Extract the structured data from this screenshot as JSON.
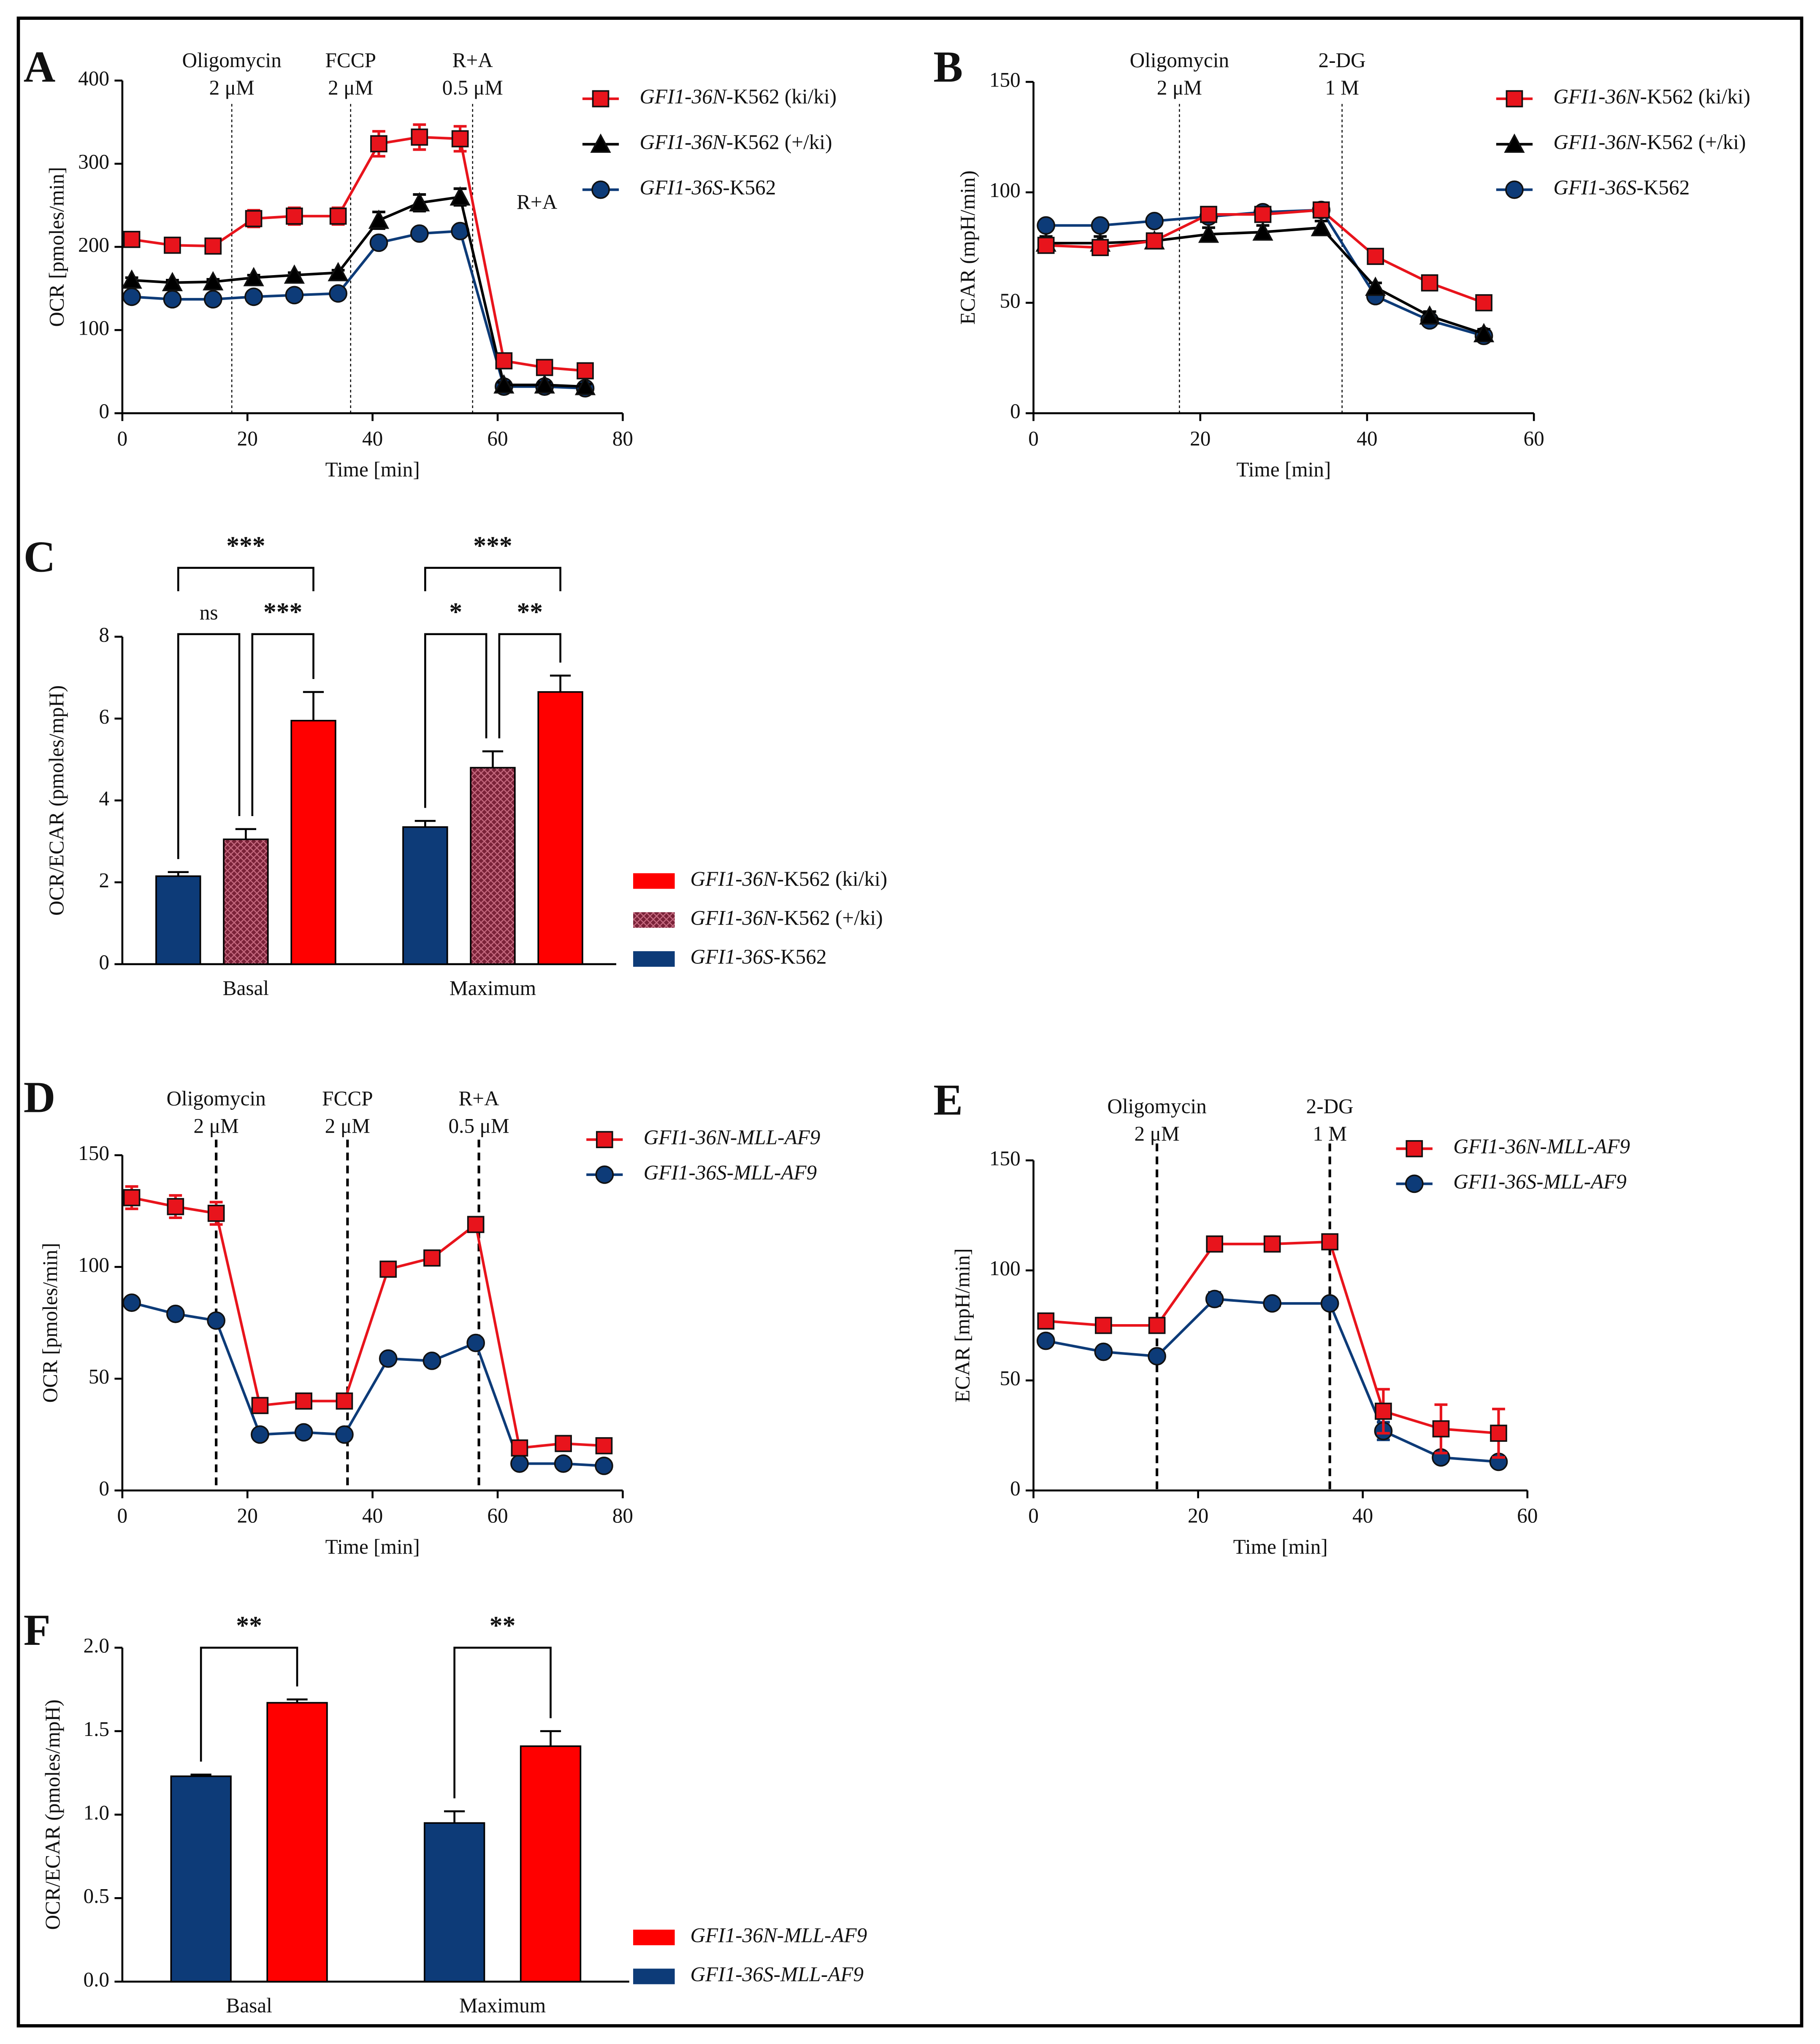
{
  "chart_data": [
    {
      "type": "line",
      "panel": "A",
      "ylabel": "OCR [pmoles/min]",
      "xlabel": "Time [min]",
      "xlim": [
        0,
        80
      ],
      "xticks": [
        0,
        20,
        40,
        60,
        80
      ],
      "ylim": [
        0,
        400
      ],
      "yticks": [
        0,
        100,
        200,
        300,
        400
      ],
      "vline_style": "dotted",
      "annotations": [
        {
          "x": 17.5,
          "label": [
            "Oligomycin",
            "2 μM"
          ]
        },
        {
          "x": 36.5,
          "label": [
            "FCCP",
            "2 μM"
          ]
        },
        {
          "x": 56,
          "label": [
            "R+A",
            "0.5 μM"
          ]
        }
      ],
      "note": "R+A",
      "x": [
        1.5,
        8,
        14.5,
        21,
        27.5,
        34.5,
        41,
        47.5,
        54,
        61,
        67.5,
        74
      ],
      "series": [
        {
          "name": "GFI1-36N-K562 (ki/ki)",
          "name_style": "italic-gene",
          "color": "#e8141c",
          "marker": "square",
          "values": [
            209,
            202,
            201,
            234,
            237,
            237,
            324,
            332,
            330,
            63,
            55,
            51
          ],
          "errors": [
            5,
            3,
            3,
            10,
            10,
            10,
            15,
            15,
            15,
            5,
            5,
            5
          ]
        },
        {
          "name": "GFI1-36N-K562 (+/ki)",
          "name_style": "italic-gene",
          "color": "#000000",
          "marker": "triangle",
          "values": [
            160,
            157,
            158,
            163,
            166,
            169,
            232,
            253,
            260,
            34,
            34,
            32
          ],
          "errors": [
            3,
            3,
            3,
            3,
            3,
            3,
            10,
            10,
            10,
            3,
            3,
            3
          ]
        },
        {
          "name": "GFI1-36S-K562",
          "name_style": "italic-gene",
          "color": "#0d3b78",
          "marker": "circle",
          "values": [
            140,
            137,
            137,
            140,
            142,
            144,
            205,
            216,
            219,
            32,
            32,
            30
          ],
          "errors": [
            2,
            2,
            2,
            2,
            2,
            2,
            3,
            3,
            3,
            2,
            2,
            2
          ]
        }
      ]
    },
    {
      "type": "line",
      "panel": "B",
      "ylabel": "ECAR (mpH/min)",
      "xlabel": "Time [min]",
      "xlim": [
        0,
        60
      ],
      "xticks": [
        0,
        20,
        40,
        60
      ],
      "ylim": [
        0,
        150
      ],
      "yticks": [
        0,
        50,
        100,
        150
      ],
      "vline_style": "dotted",
      "annotations": [
        {
          "x": 17.5,
          "label": [
            "Oligomycin",
            "2 μM"
          ]
        },
        {
          "x": 37,
          "label": [
            "2-DG",
            "1 M"
          ]
        }
      ],
      "x": [
        1.5,
        8,
        14.5,
        21,
        27.5,
        34.5,
        41,
        47.5,
        54
      ],
      "series": [
        {
          "name": "GFI1-36N-K562 (ki/ki)",
          "name_style": "italic-gene",
          "color": "#e8141c",
          "marker": "square",
          "values": [
            76,
            75,
            78,
            90,
            90,
            92,
            71,
            59,
            50
          ],
          "errors": [
            3,
            2,
            3,
            3,
            3,
            2,
            3,
            2,
            2
          ]
        },
        {
          "name": "GFI1-36N-K562 (+/ki)",
          "name_style": "italic-gene",
          "color": "#000000",
          "marker": "triangle",
          "values": [
            77,
            77,
            78,
            81,
            82,
            84,
            57,
            44,
            36
          ],
          "errors": [
            3,
            3,
            3,
            3,
            3,
            3,
            2,
            2,
            2
          ]
        },
        {
          "name": "GFI1-36S-K562",
          "name_style": "italic-gene",
          "color": "#0d3b78",
          "marker": "circle",
          "values": [
            85,
            85,
            87,
            89,
            91,
            92,
            53,
            42,
            35
          ],
          "errors": [
            2,
            2,
            2,
            2,
            2,
            2,
            2,
            2,
            2
          ]
        }
      ]
    },
    {
      "type": "bar",
      "panel": "C",
      "ylabel": "OCR/ECAR (pmoles/mpH)",
      "categories": [
        "Basal",
        "Maximum"
      ],
      "ylim": [
        0,
        8
      ],
      "yticks": [
        0,
        2,
        4,
        6,
        8
      ],
      "series": [
        {
          "name": "GFI1-36N-K562 (ki/ki)",
          "name_style": "italic-gene",
          "color": "#ff0000",
          "values": [
            5.95,
            6.65
          ],
          "errors": [
            0.7,
            0.4
          ]
        },
        {
          "name": "GFI1-36N-K562 (+/ki)",
          "name_style": "italic-gene",
          "color": "#7a2238",
          "hatch": true,
          "values": [
            3.05,
            4.8
          ],
          "errors": [
            0.25,
            0.4
          ]
        },
        {
          "name": "GFI1-36S-K562",
          "name_style": "italic-gene",
          "color": "#0d3b78",
          "values": [
            2.15,
            3.35
          ],
          "errors": [
            0.1,
            0.15
          ]
        }
      ],
      "significance": [
        [
          "***",
          "ns",
          "***"
        ],
        [
          "***",
          "*",
          "**"
        ]
      ]
    },
    {
      "type": "line",
      "panel": "D",
      "ylabel": "OCR [pmoles/min]",
      "xlabel": "Time [min]",
      "xlim": [
        0,
        80
      ],
      "xticks": [
        0,
        20,
        40,
        60,
        80
      ],
      "ylim": [
        0,
        150
      ],
      "yticks": [
        0,
        50,
        100,
        150
      ],
      "vline_style": "dashed",
      "annotations": [
        {
          "x": 15,
          "label": [
            "Oligomycin",
            "2 μM"
          ]
        },
        {
          "x": 36,
          "label": [
            "FCCP",
            "2 μM"
          ]
        },
        {
          "x": 57,
          "label": [
            "R+A",
            "0.5 μM"
          ]
        }
      ],
      "x": [
        1.5,
        8.5,
        15,
        22,
        29,
        35.5,
        42.5,
        49.5,
        56.5,
        63.5,
        70.5,
        77
      ],
      "series": [
        {
          "name": "GFI1-36N-MLL-AF9",
          "name_style": "italic",
          "color": "#e8141c",
          "marker": "square",
          "values": [
            131,
            127,
            124,
            38,
            40,
            40,
            99,
            104,
            119,
            19,
            21,
            20
          ],
          "errors": [
            5,
            5,
            5,
            2,
            2,
            2,
            2,
            2,
            2,
            2,
            2,
            2
          ]
        },
        {
          "name": "GFI1-36S-MLL-AF9",
          "name_style": "italic",
          "color": "#0d3b78",
          "marker": "circle",
          "values": [
            84,
            79,
            76,
            25,
            26,
            25,
            59,
            58,
            66,
            12,
            12,
            11
          ],
          "errors": [
            1,
            1,
            1,
            1,
            1,
            1,
            1,
            1,
            1,
            1,
            1,
            1
          ]
        }
      ]
    },
    {
      "type": "line",
      "panel": "E",
      "ylabel": "ECAR [mpH/min]",
      "xlabel": "Time [min]",
      "xlim": [
        0,
        60
      ],
      "xticks": [
        0,
        20,
        40,
        60
      ],
      "ylim": [
        0,
        150
      ],
      "yticks": [
        0,
        50,
        100,
        150
      ],
      "vline_style": "dashed",
      "annotations": [
        {
          "x": 15,
          "label": [
            "Oligomycin",
            "2 μM"
          ]
        },
        {
          "x": 36,
          "label": [
            "2-DG",
            "1 M"
          ]
        }
      ],
      "x": [
        1.5,
        8.5,
        15,
        22,
        29,
        36,
        42.5,
        49.5,
        56.5
      ],
      "series": [
        {
          "name": "GFI1-36N-MLL-AF9",
          "name_style": "italic",
          "color": "#e8141c",
          "marker": "square",
          "values": [
            77,
            75,
            75,
            112,
            112,
            113,
            36,
            28,
            26
          ],
          "errors": [
            2,
            2,
            2,
            2,
            2,
            2,
            10,
            11,
            11
          ]
        },
        {
          "name": "GFI1-36S-MLL-AF9",
          "name_style": "italic",
          "color": "#0d3b78",
          "marker": "circle",
          "values": [
            68,
            63,
            61,
            87,
            85,
            85,
            27,
            15,
            13
          ],
          "errors": [
            2,
            2,
            2,
            3,
            2,
            2,
            4,
            2,
            2
          ]
        }
      ]
    },
    {
      "type": "bar",
      "panel": "F",
      "ylabel": "OCR/ECAR (pmoles/mpH)",
      "categories": [
        "Basal",
        "Maximum"
      ],
      "ylim": [
        0,
        2
      ],
      "yticks": [
        {
          "value": 0,
          "label": "0.0"
        },
        0.5,
        {
          "value": 1,
          "label": "1.0"
        },
        1.5,
        {
          "value": 2,
          "label": "2.0"
        }
      ],
      "series": [
        {
          "name": "GFI1-36N-MLL-AF9",
          "name_style": "italic",
          "color": "#ff0000",
          "values": [
            1.67,
            1.41
          ],
          "errors": [
            0.02,
            0.09
          ]
        },
        {
          "name": "GFI1-36S-MLL-AF9",
          "name_style": "italic",
          "color": "#0d3b78",
          "values": [
            1.23,
            0.95
          ],
          "errors": [
            0.01,
            0.07
          ]
        }
      ],
      "significance": [
        [
          "**"
        ],
        [
          "**"
        ]
      ]
    }
  ]
}
